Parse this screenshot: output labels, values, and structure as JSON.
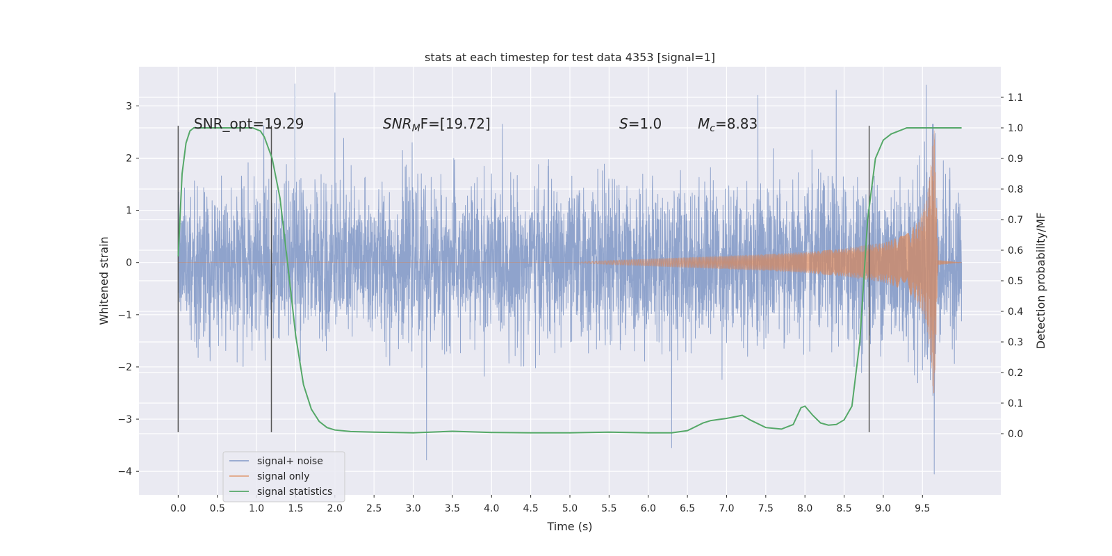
{
  "chart_data": {
    "type": "line",
    "title": "stats at each timestep for test data 4353 [signal=1]",
    "xlabel": "Time (s)",
    "ylabel_left": "Whitened strain",
    "ylabel_right": "Detection probability/MF",
    "xlim": [
      -0.5,
      10.5
    ],
    "ylim_left": [
      -4.45,
      3.75
    ],
    "ylim_right": [
      -0.2,
      1.2
    ],
    "x_ticks": [
      0.0,
      0.5,
      1.0,
      1.5,
      2.0,
      2.5,
      3.0,
      3.5,
      4.0,
      4.5,
      5.0,
      5.5,
      6.0,
      6.5,
      7.0,
      7.5,
      8.0,
      8.5,
      9.0,
      9.5
    ],
    "x_tick_labels": [
      "0.0",
      "0.5",
      "1.0",
      "1.5",
      "2.0",
      "2.5",
      "3.0",
      "3.5",
      "4.0",
      "4.5",
      "5.0",
      "5.5",
      "6.0",
      "6.5",
      "7.0",
      "7.5",
      "8.0",
      "8.5",
      "9.0",
      "9.5"
    ],
    "y_ticks_left": [
      -4,
      -3,
      -2,
      -1,
      0,
      1,
      2,
      3
    ],
    "y_tick_labels_left": [
      "−4",
      "−3",
      "−2",
      "−1",
      "0",
      "1",
      "2",
      "3"
    ],
    "y_ticks_right": [
      0.0,
      0.1,
      0.2,
      0.3,
      0.4,
      0.5,
      0.6,
      0.7,
      0.8,
      0.9,
      1.0,
      1.1
    ],
    "y_tick_labels_right": [
      "0.0",
      "0.1",
      "0.2",
      "0.3",
      "0.4",
      "0.5",
      "0.6",
      "0.7",
      "0.8",
      "0.9",
      "1.0",
      "1.1"
    ],
    "grid": true,
    "legend_position": "lower-left",
    "annotations": {
      "snr_opt": "SNR_opt=19.29",
      "snr_mf_sym": "SNR",
      "snr_mf_sub": "M",
      "snr_mf_rest": "F=[19.72]",
      "s_sym": "S",
      "s_rest": "=1.0",
      "mc_sym": "M",
      "mc_sub": "c",
      "mc_rest": "=8.83"
    },
    "vertical_markers": [
      {
        "x": 0.0,
        "y_range": [
          -3.25,
          2.62
        ]
      },
      {
        "x": 1.19,
        "y_range": [
          -3.25,
          2.62
        ]
      },
      {
        "x": 8.82,
        "y_range": [
          -3.25,
          2.62
        ]
      }
    ],
    "series": [
      {
        "name": "signal+ noise",
        "color": "#8fa3cc",
        "x_range": [
          0.0,
          10.0
        ],
        "typical_amplitude": 1.5,
        "notable_extremes": [
          {
            "x": 1.49,
            "y": 3.42
          },
          {
            "x": 2.0,
            "y": 3.25
          },
          {
            "x": 3.17,
            "y": -3.78
          },
          {
            "x": 6.3,
            "y": -3.55
          },
          {
            "x": 7.4,
            "y": 3.2
          },
          {
            "x": 8.4,
            "y": 3.3
          },
          {
            "x": 9.55,
            "y": 3.4
          },
          {
            "x": 9.65,
            "y": -4.05
          }
        ]
      },
      {
        "name": "signal only",
        "color": "#dd8452",
        "envelope": [
          {
            "x": 0.0,
            "y": 0.0
          },
          {
            "x": 5.0,
            "y": 0.0
          },
          {
            "x": 5.5,
            "y": 0.04
          },
          {
            "x": 6.0,
            "y": 0.07
          },
          {
            "x": 6.5,
            "y": 0.1
          },
          {
            "x": 7.0,
            "y": 0.13
          },
          {
            "x": 7.5,
            "y": 0.16
          },
          {
            "x": 8.0,
            "y": 0.2
          },
          {
            "x": 8.5,
            "y": 0.27
          },
          {
            "x": 9.0,
            "y": 0.38
          },
          {
            "x": 9.3,
            "y": 0.55
          },
          {
            "x": 9.45,
            "y": 0.8
          },
          {
            "x": 9.55,
            "y": 1.2
          },
          {
            "x": 9.6,
            "y": 1.8
          },
          {
            "x": 9.65,
            "y": 2.75
          },
          {
            "x": 9.7,
            "y": 0.05
          },
          {
            "x": 10.0,
            "y": 0.0
          }
        ]
      },
      {
        "name": "signal statistics",
        "color": "#55a868",
        "axis": "right",
        "x": [
          0.0,
          0.05,
          0.1,
          0.15,
          0.2,
          0.3,
          0.5,
          0.8,
          0.95,
          1.05,
          1.1,
          1.2,
          1.3,
          1.4,
          1.5,
          1.6,
          1.7,
          1.8,
          1.9,
          2.0,
          2.2,
          2.5,
          3.0,
          3.5,
          4.0,
          4.5,
          5.0,
          5.5,
          6.0,
          6.3,
          6.5,
          6.7,
          6.8,
          7.0,
          7.2,
          7.3,
          7.5,
          7.7,
          7.85,
          7.95,
          8.0,
          8.1,
          8.2,
          8.3,
          8.4,
          8.5,
          8.6,
          8.7,
          8.8,
          8.9,
          9.0,
          9.1,
          9.3,
          9.5,
          10.0
        ],
        "y": [
          0.58,
          0.85,
          0.95,
          0.99,
          1.0,
          1.0,
          1.0,
          1.0,
          1.0,
          0.99,
          0.97,
          0.9,
          0.77,
          0.55,
          0.32,
          0.16,
          0.08,
          0.04,
          0.02,
          0.012,
          0.007,
          0.005,
          0.003,
          0.008,
          0.004,
          0.003,
          0.003,
          0.005,
          0.003,
          0.003,
          0.01,
          0.035,
          0.043,
          0.05,
          0.06,
          0.045,
          0.02,
          0.015,
          0.03,
          0.085,
          0.09,
          0.06,
          0.035,
          0.028,
          0.03,
          0.045,
          0.09,
          0.3,
          0.7,
          0.9,
          0.96,
          0.98,
          1.0,
          1.0,
          1.0
        ]
      }
    ]
  }
}
